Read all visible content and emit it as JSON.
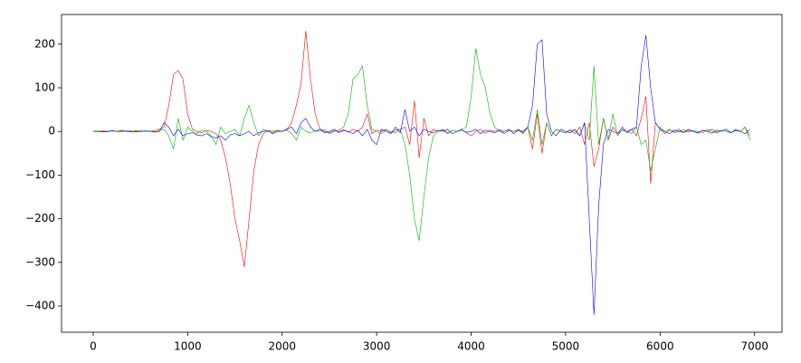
{
  "chart_data": {
    "type": "line",
    "x": [
      0,
      50,
      100,
      150,
      200,
      250,
      300,
      350,
      400,
      450,
      500,
      550,
      600,
      650,
      700,
      750,
      800,
      850,
      900,
      950,
      1000,
      1050,
      1100,
      1150,
      1200,
      1250,
      1300,
      1350,
      1400,
      1450,
      1500,
      1550,
      1600,
      1650,
      1700,
      1750,
      1800,
      1850,
      1900,
      1950,
      2000,
      2050,
      2100,
      2150,
      2200,
      2250,
      2300,
      2350,
      2400,
      2450,
      2500,
      2550,
      2600,
      2650,
      2700,
      2750,
      2800,
      2850,
      2900,
      2950,
      3000,
      3050,
      3100,
      3150,
      3200,
      3250,
      3300,
      3350,
      3400,
      3450,
      3500,
      3550,
      3600,
      3650,
      3700,
      3750,
      3800,
      3850,
      3900,
      3950,
      4000,
      4050,
      4100,
      4150,
      4200,
      4250,
      4300,
      4350,
      4400,
      4450,
      4500,
      4550,
      4600,
      4650,
      4700,
      4750,
      4800,
      4850,
      4900,
      4950,
      5000,
      5050,
      5100,
      5150,
      5200,
      5250,
      5300,
      5350,
      5400,
      5450,
      5500,
      5550,
      5600,
      5650,
      5700,
      5750,
      5800,
      5850,
      5900,
      5950,
      6000,
      6050,
      6100,
      6150,
      6200,
      6250,
      6300,
      6350,
      6400,
      6450,
      6500,
      6550,
      6600,
      6650,
      6700,
      6750,
      6800,
      6850,
      6900,
      6950
    ],
    "series": [
      {
        "color": "#ff0000",
        "values": [
          0,
          0,
          1,
          0,
          2,
          0,
          1,
          0,
          -1,
          2,
          0,
          1,
          0,
          2,
          5,
          10,
          60,
          130,
          140,
          120,
          40,
          5,
          0,
          -3,
          2,
          0,
          -5,
          -20,
          -60,
          -120,
          -200,
          -250,
          -310,
          -200,
          -90,
          -30,
          -5,
          2,
          0,
          3,
          0,
          5,
          20,
          60,
          110,
          230,
          120,
          40,
          5,
          0,
          -3,
          2,
          0,
          4,
          -2,
          5,
          0,
          10,
          40,
          -5,
          3,
          0,
          5,
          -4,
          3,
          5,
          10,
          -30,
          70,
          -60,
          30,
          -10,
          5,
          0,
          3,
          -5,
          2,
          0,
          4,
          -3,
          -10,
          0,
          5,
          -4,
          3,
          0,
          5,
          -5,
          2,
          0,
          3,
          -5,
          10,
          -40,
          40,
          -50,
          20,
          -10,
          5,
          0,
          -3,
          2,
          -5,
          10,
          -30,
          20,
          -80,
          -40,
          30,
          -20,
          10,
          -5,
          3,
          0,
          5,
          -10,
          30,
          80,
          -120,
          20,
          5,
          -5,
          3,
          0,
          5,
          -3,
          2,
          0,
          -4,
          3,
          0,
          5,
          -2,
          3,
          0,
          -3,
          4,
          0,
          10,
          -10
        ]
      },
      {
        "color": "#00b000",
        "values": [
          0,
          1,
          0,
          -1,
          2,
          0,
          3,
          0,
          1,
          0,
          2,
          0,
          1,
          -2,
          3,
          5,
          -10,
          -40,
          30,
          -20,
          10,
          0,
          -5,
          3,
          0,
          -10,
          -30,
          10,
          -5,
          0,
          5,
          -10,
          30,
          60,
          20,
          -10,
          5,
          0,
          -3,
          2,
          0,
          3,
          -5,
          -20,
          10,
          0,
          -3,
          2,
          0,
          5,
          -5,
          0,
          3,
          10,
          40,
          120,
          130,
          150,
          60,
          5,
          0,
          -5,
          3,
          0,
          -3,
          5,
          -30,
          -100,
          -200,
          -250,
          -150,
          -60,
          -10,
          0,
          5,
          -3,
          2,
          0,
          5,
          10,
          80,
          190,
          130,
          100,
          40,
          10,
          0,
          -5,
          3,
          0,
          5,
          -3,
          10,
          -20,
          50,
          -30,
          20,
          -10,
          5,
          0,
          -3,
          5,
          0,
          -10,
          20,
          -20,
          150,
          -30,
          30,
          -20,
          40,
          -10,
          5,
          0,
          -5,
          10,
          -30,
          -20,
          -90,
          -40,
          10,
          0,
          5,
          -3,
          0,
          4,
          -2,
          3,
          0,
          -3,
          5,
          0,
          -4,
          3,
          0,
          -3,
          5,
          0,
          10,
          -20
        ]
      },
      {
        "color": "#0000ff",
        "values": [
          0,
          0,
          -1,
          0,
          1,
          0,
          0,
          1,
          0,
          -1,
          0,
          1,
          0,
          0,
          -1,
          20,
          10,
          -10,
          5,
          -10,
          -5,
          -3,
          -8,
          -10,
          -5,
          -12,
          -15,
          -10,
          -20,
          -8,
          -5,
          -10,
          -5,
          0,
          -10,
          -3,
          0,
          2,
          -5,
          0,
          0,
          5,
          10,
          -5,
          20,
          30,
          10,
          0,
          5,
          -3,
          0,
          5,
          -3,
          2,
          0,
          -5,
          3,
          -10,
          5,
          -20,
          -30,
          5,
          0,
          -5,
          10,
          -3,
          50,
          0,
          10,
          -10,
          5,
          0,
          -3,
          3,
          0,
          5,
          -5,
          0,
          3,
          -2,
          0,
          5,
          -5,
          3,
          0,
          -3,
          2,
          0,
          5,
          -5,
          3,
          0,
          10,
          60,
          200,
          210,
          40,
          0,
          -10,
          5,
          0,
          -3,
          5,
          -10,
          20,
          -200,
          -420,
          -170,
          -30,
          5,
          0,
          -5,
          10,
          -3,
          5,
          10,
          150,
          220,
          100,
          20,
          5,
          0,
          -5,
          3,
          0,
          -2,
          5,
          0,
          -3,
          2,
          0,
          -4,
          3,
          0,
          5,
          -3,
          2,
          0,
          -5,
          5
        ]
      }
    ],
    "xlim": [
      -335,
      7290
    ],
    "ylim": [
      -460,
      268
    ],
    "xticks": [
      0,
      1000,
      2000,
      3000,
      4000,
      5000,
      6000,
      7000
    ],
    "yticks": [
      {
        "value": -400,
        "label": "−400"
      },
      {
        "value": -300,
        "label": "−300"
      },
      {
        "value": -200,
        "label": "−200"
      },
      {
        "value": -100,
        "label": "−100"
      },
      0,
      100,
      200
    ]
  }
}
